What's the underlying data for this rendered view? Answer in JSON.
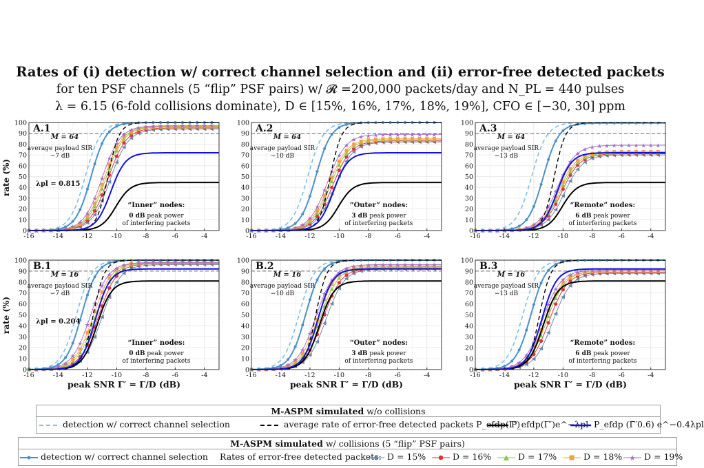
{
  "title": {
    "line1": "Rates of (i) detection w/ correct channel selection and (ii) error-free detected packets",
    "line2": "for ten PSF channels (5 “flip” PSF pairs) w/ 𝓡 =200,000 packets/day and N_PL = 440 pulses",
    "line3": "λ = 6.15 (6-fold collisions dominate), D ∈ [15%, 16%, 17%, 18%, 19%],  CFO ∈ [−30, 30] ppm"
  },
  "colors": {
    "detect_nocoll": "#7fbde6",
    "detect_coll": "#4a90c8",
    "efdp_avg": "#000000",
    "efdp_lam": "#000000",
    "efdp_bar": "#1010e0",
    "D15": "#6f86a8",
    "D16": "#d9343a",
    "D17": "#8fc44a",
    "D18": "#f2a23a",
    "D19": "#a66fcf"
  },
  "axes": {
    "ylabel": "rate (%)",
    "xlabel": "peak SNR  Γ′ = Γ/D (dB)",
    "xticks": [
      "-16",
      "-14",
      "-12",
      "-10",
      "-8",
      "-6",
      "-4"
    ],
    "yticks": [
      "0",
      "10",
      "20",
      "30",
      "40",
      "50",
      "60",
      "70",
      "80",
      "90",
      "100"
    ]
  },
  "chart_data": [
    {
      "type": "line",
      "panel": "A.1",
      "M": "M = 64",
      "sir_label": "average payload SIR",
      "sir": "−7 dB",
      "lambda_pl": "λpl = 0.815",
      "node_label": "“Inner” nodes:",
      "power": "0 dB",
      "power_rest": " peak power",
      "interf": "of interfering packets",
      "xlim": [
        -16,
        -3
      ],
      "ylim": [
        0,
        100
      ],
      "grid": true,
      "series": {
        "det_nc": {
          "mid": -12.15,
          "max": 100
        },
        "det_c": {
          "mid": -11.75,
          "max": 100
        },
        "avg": {
          "mid": -10.6,
          "max": 100
        },
        "lam": {
          "mid": -10.05,
          "max": 44.5
        },
        "bar": {
          "mid": -10.4,
          "max": 72
        },
        "D15": {
          "mid": -10.45,
          "max": 94
        },
        "D16": {
          "mid": -10.6,
          "max": 95
        },
        "D17": {
          "mid": -10.75,
          "max": 96
        },
        "D18": {
          "mid": -10.85,
          "max": 96.5
        },
        "D19": {
          "mid": -11.0,
          "max": 97
        }
      }
    },
    {
      "type": "line",
      "panel": "A.2",
      "M": "M = 64",
      "sir_label": "average payload SIR",
      "sir": "−10 dB",
      "node_label": "“Outer” nodes:",
      "power": "3 dB",
      "power_rest": " peak power",
      "interf": "of interfering packets",
      "xlim": [
        -16,
        -3
      ],
      "ylim": [
        0,
        100
      ],
      "grid": true,
      "series": {
        "det_nc": {
          "mid": -12.15,
          "max": 100
        },
        "det_c": {
          "mid": -11.6,
          "max": 100
        },
        "avg": {
          "mid": -10.6,
          "max": 100
        },
        "lam": {
          "mid": -10.05,
          "max": 44.5
        },
        "bar": {
          "mid": -10.4,
          "max": 72
        },
        "D15": {
          "mid": -10.3,
          "max": 82
        },
        "D16": {
          "mid": -10.45,
          "max": 83
        },
        "D17": {
          "mid": -10.6,
          "max": 84
        },
        "D18": {
          "mid": -10.7,
          "max": 85
        },
        "D19": {
          "mid": -10.8,
          "max": 89
        }
      }
    },
    {
      "type": "line",
      "panel": "A.3",
      "M": "M = 64",
      "sir_label": "average payload SIR",
      "sir": "−13 dB",
      "node_label": "“Remote” nodes:",
      "power": "6 dB",
      "power_rest": " peak power",
      "interf": "of interfering packets",
      "xlim": [
        -16,
        -3
      ],
      "ylim": [
        0,
        100
      ],
      "grid": true,
      "series": {
        "det_nc": {
          "mid": -12.15,
          "max": 100
        },
        "det_c": {
          "mid": -11.35,
          "max": 99.5
        },
        "avg": {
          "mid": -10.6,
          "max": 100
        },
        "lam": {
          "mid": -10.05,
          "max": 44.5
        },
        "bar": {
          "mid": -10.4,
          "max": 72
        },
        "D15": {
          "mid": -9.9,
          "max": 70
        },
        "D16": {
          "mid": -10.1,
          "max": 71
        },
        "D17": {
          "mid": -10.2,
          "max": 72
        },
        "D18": {
          "mid": -10.3,
          "max": 73
        },
        "D19": {
          "mid": -10.4,
          "max": 79
        }
      }
    },
    {
      "type": "line",
      "panel": "B.1",
      "M": "M = 16",
      "sir_label": "average payload SIR",
      "sir": "−7 dB",
      "lambda_pl": "λpl = 0.204",
      "node_label": "“Inner” nodes:",
      "power": "0 dB",
      "power_rest": " peak power",
      "interf": "of interfering packets",
      "xlim": [
        -16,
        -3
      ],
      "ylim": [
        0,
        100
      ],
      "grid": true,
      "series": {
        "det_nc": {
          "mid": -12.75,
          "max": 100
        },
        "det_c": {
          "mid": -12.4,
          "max": 100
        },
        "avg": {
          "mid": -11.6,
          "max": 100
        },
        "lam": {
          "mid": -11.35,
          "max": 81
        },
        "bar": {
          "mid": -11.45,
          "max": 92
        },
        "D15": {
          "mid": -11.0,
          "max": 96
        },
        "D16": {
          "mid": -11.25,
          "max": 97
        },
        "D17": {
          "mid": -11.45,
          "max": 97.5
        },
        "D18": {
          "mid": -11.6,
          "max": 98
        },
        "D19": {
          "mid": -11.8,
          "max": 98
        }
      }
    },
    {
      "type": "line",
      "panel": "B.2",
      "M": "M = 16",
      "sir_label": "average payload SIR",
      "sir": "−10 dB",
      "node_label": "“Outer” nodes:",
      "power": "3 dB",
      "power_rest": " peak power",
      "interf": "of interfering packets",
      "xlim": [
        -16,
        -3
      ],
      "ylim": [
        0,
        100
      ],
      "grid": true,
      "series": {
        "det_nc": {
          "mid": -12.75,
          "max": 100
        },
        "det_c": {
          "mid": -12.3,
          "max": 100
        },
        "avg": {
          "mid": -11.6,
          "max": 100
        },
        "lam": {
          "mid": -11.35,
          "max": 81
        },
        "bar": {
          "mid": -11.45,
          "max": 92
        },
        "D15": {
          "mid": -10.9,
          "max": 92
        },
        "D16": {
          "mid": -11.1,
          "max": 93
        },
        "D17": {
          "mid": -11.3,
          "max": 94
        },
        "D18": {
          "mid": -11.45,
          "max": 95
        },
        "D19": {
          "mid": -11.6,
          "max": 96
        }
      }
    },
    {
      "type": "line",
      "panel": "B.3",
      "M": "M = 16",
      "sir_label": "average payload SIR",
      "sir": "−13 dB",
      "node_label": "“Remote” nodes:",
      "power": "6 dB",
      "power_rest": " peak power",
      "interf": "of interfering packets",
      "xlim": [
        -16,
        -3
      ],
      "ylim": [
        0,
        100
      ],
      "grid": true,
      "series": {
        "det_nc": {
          "mid": -12.75,
          "max": 100
        },
        "det_c": {
          "mid": -12.2,
          "max": 100
        },
        "avg": {
          "mid": -11.6,
          "max": 100
        },
        "lam": {
          "mid": -11.35,
          "max": 81
        },
        "bar": {
          "mid": -11.45,
          "max": 92
        },
        "D15": {
          "mid": -10.7,
          "max": 88
        },
        "D16": {
          "mid": -10.95,
          "max": 89
        },
        "D17": {
          "mid": -11.1,
          "max": 90
        },
        "D18": {
          "mid": -11.25,
          "max": 90
        },
        "D19": {
          "mid": -11.4,
          "max": 91
        }
      }
    }
  ],
  "legend1": {
    "head_bold": "M-ASPM simulated",
    "head_rest": " w/o collisions",
    "det": "detection w/ correct channel selection",
    "avg": "average rate of error-free detected packets P_efdp(Γ′)",
    "lam": "P_efdp(Γ′)e^−λpl",
    "bar": "P_efdp (Γ̄′0.6) e^−0.4λpl"
  },
  "legend2": {
    "head_bold": "M-ASPM simulated",
    "head_rest": " w/ collisions (5 “flip” PSF pairs)",
    "det": "detection w/ correct channel selection",
    "rates": "Rates of error-free detected packets:",
    "D15": "D = 15%",
    "D16": "D = 16%",
    "D17": "D = 17%",
    "D18": "D = 18%",
    "D19": "D = 19%"
  }
}
